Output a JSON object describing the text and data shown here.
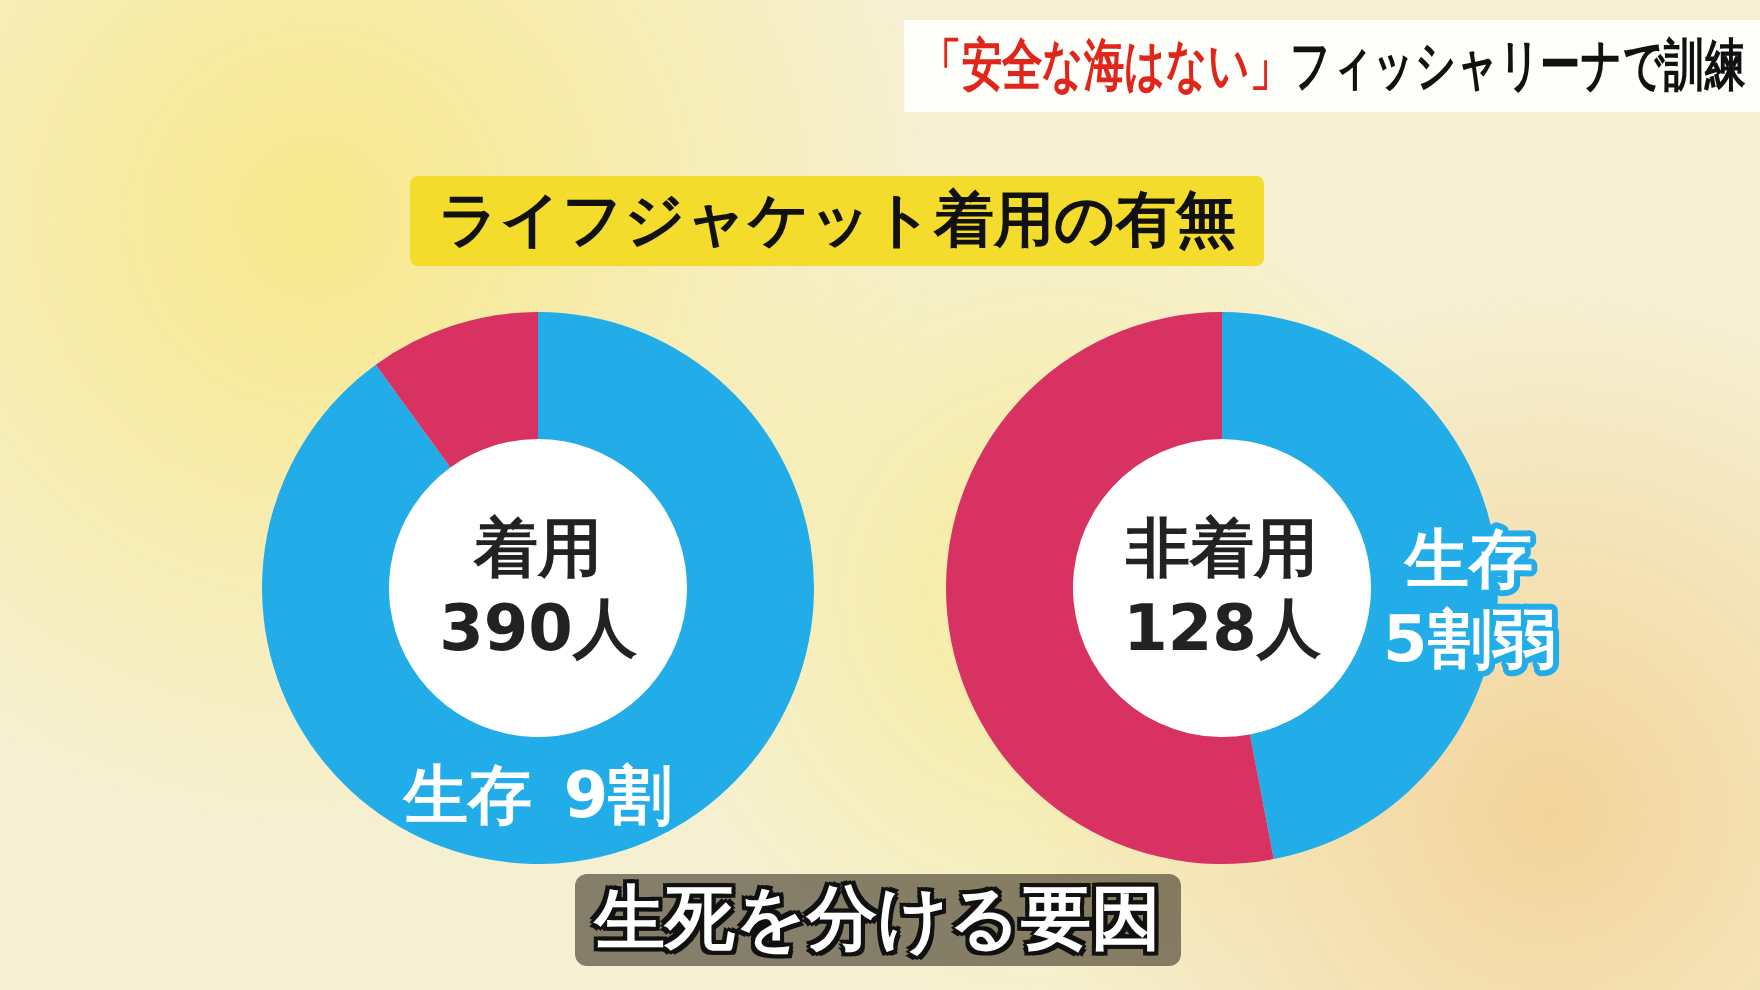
{
  "chart_data": [
    {
      "type": "donut",
      "title": "着用\n390人",
      "categories": [
        "生存",
        null
      ],
      "values": [
        9,
        1
      ],
      "colors": [
        "#22ade9",
        "#d73262"
      ],
      "value_labels": [
        "9割",
        null
      ],
      "annotations": [
        "「安全な海はない」",
        "フィッシャリーナで訓練",
        "ライフジャケット着用の有無",
        "生死を分ける要因"
      ]
    },
    {
      "type": "donut",
      "title": "非着用\n128人",
      "categories": [
        "生存",
        null
      ],
      "values": [
        4.7,
        5.3
      ],
      "colors": [
        "#22ade9",
        "#d73262"
      ],
      "value_labels": [
        "5割弱",
        null
      ]
    }
  ]
}
